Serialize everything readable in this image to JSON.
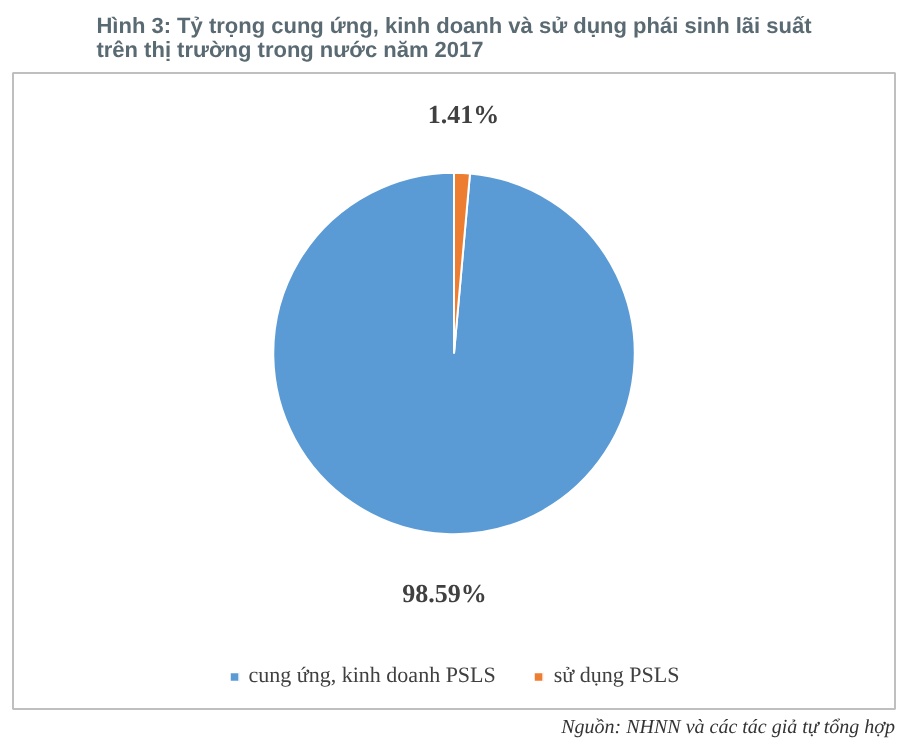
{
  "chart_data": {
    "type": "pie",
    "title": "Hình 3: Tỷ trọng cung ứng, kinh doanh và sử dụng phái sinh lãi suất trên thị trường trong nước năm 2017",
    "categories": [
      "cung ứng, kinh doanh PSLS",
      "sử dụng PSLS"
    ],
    "values": [
      98.59,
      1.41
    ],
    "colors": [
      "#5b9bd5",
      "#ed7d31"
    ],
    "value_labels": [
      "98.59%",
      "1.41%"
    ],
    "legend": "bottom",
    "annotations": [
      "Nguồn: NHNN và các tác giả tự tổng hợp"
    ]
  }
}
